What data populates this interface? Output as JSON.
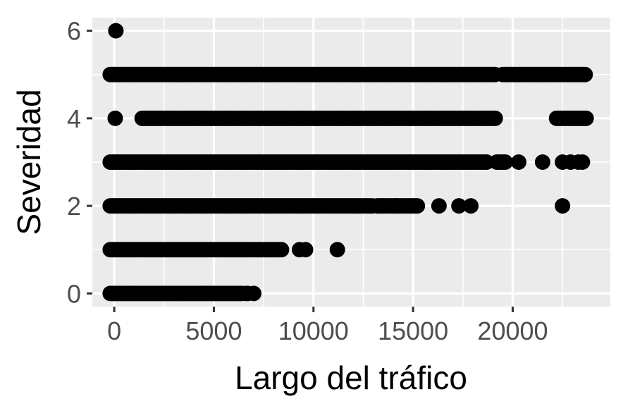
{
  "chart_data": {
    "type": "scatter",
    "title": "",
    "xlabel": "Largo del tráfico",
    "ylabel": "Severidad",
    "xlim": [
      -1100,
      24900
    ],
    "ylim": [
      -0.3,
      6.3
    ],
    "x_ticks": [
      0,
      5000,
      10000,
      15000,
      20000
    ],
    "x_tick_labels": [
      "0",
      "5000",
      "10000",
      "15000",
      "20000"
    ],
    "y_ticks": [
      0,
      2,
      4,
      6
    ],
    "y_tick_labels": [
      "0",
      "2",
      "4",
      "6"
    ],
    "grid": true,
    "colors": {
      "panel": "#ebebeb",
      "grid": "#ffffff",
      "point": "#000000"
    },
    "series": [
      {
        "y": 6,
        "ranges": [],
        "points": [
          80
        ]
      },
      {
        "y": 5,
        "ranges": [
          [
            -200,
            19200
          ],
          [
            19500,
            23700
          ]
        ],
        "points": []
      },
      {
        "y": 4,
        "ranges": [
          [
            1400,
            19200
          ],
          [
            22200,
            23700
          ]
        ],
        "points": [
          50
        ]
      },
      {
        "y": 3,
        "ranges": [
          [
            -200,
            18700
          ],
          [
            19200,
            19700
          ]
        ],
        "points": [
          20300,
          21500,
          22500,
          22900,
          23300,
          23500
        ]
      },
      {
        "y": 2,
        "ranges": [
          [
            -200,
            13000
          ],
          [
            13200,
            15300
          ]
        ],
        "points": [
          13500,
          14100,
          16300,
          17300,
          17900,
          22500
        ]
      },
      {
        "y": 1,
        "ranges": [
          [
            -200,
            8500
          ]
        ],
        "points": [
          9300,
          9600,
          11200
        ]
      },
      {
        "y": 0,
        "ranges": [
          [
            -200,
            6400
          ],
          [
            6600,
            6800
          ]
        ],
        "points": [
          7000
        ]
      }
    ]
  }
}
